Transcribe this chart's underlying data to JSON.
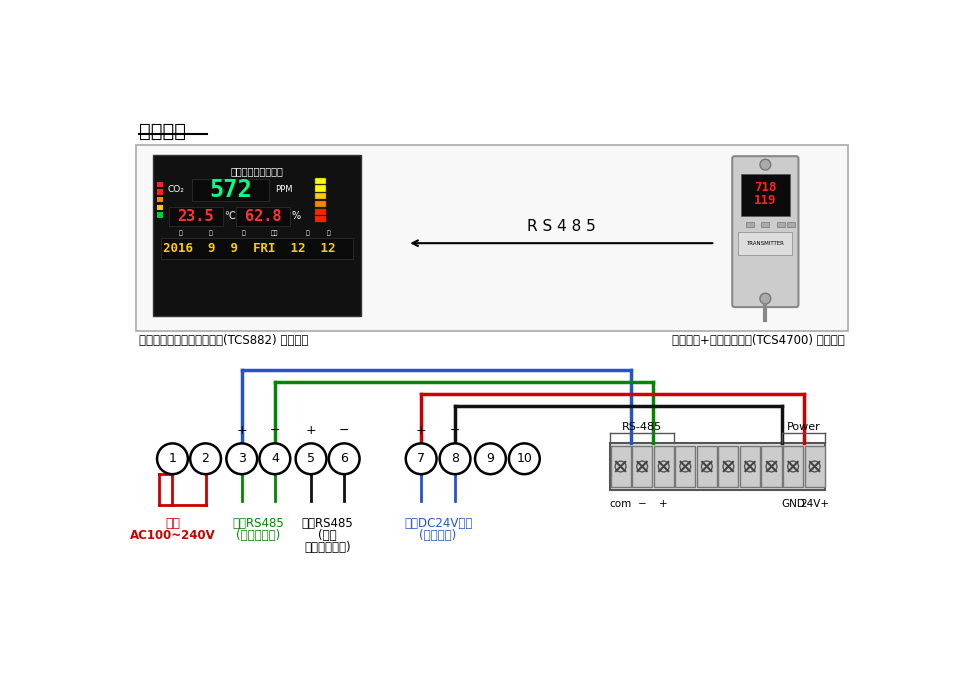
{
  "title": "接線範例",
  "bg_color": "#ffffff",
  "box_label_left": "室內環境空氣品質顯示看板(TCS882) 接線角位",
  "box_label_right": "二氧化碳+溫濕度偵測器(TCS4700) 接線角位",
  "rs485_label": "R S 4 8 5",
  "wire_colors": {
    "blue": "#2255cc",
    "green": "#008800",
    "red": "#cc0000",
    "black": "#111111"
  }
}
